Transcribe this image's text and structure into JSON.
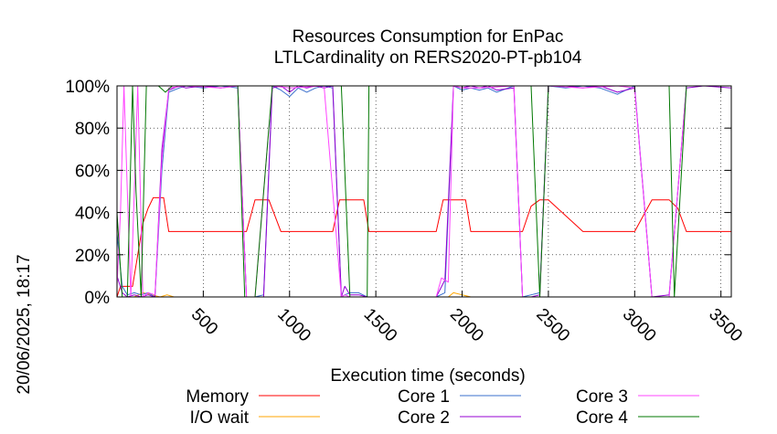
{
  "chart_data": {
    "type": "line",
    "title": "Resources Consumption for EnPac",
    "subtitle": "LTLCardinality on RERS2020-PT-pb104",
    "xlabel": "Execution time (seconds)",
    "ylabel": "",
    "side_label": "20/06/2025, 18:17",
    "xlim": [
      0,
      3560
    ],
    "ylim": [
      0,
      100
    ],
    "x_ticks": [
      500,
      1000,
      1500,
      2000,
      2500,
      3000,
      3500
    ],
    "x_tick_labels": [
      "500",
      "1000",
      "1500",
      "2000",
      "2500",
      "3000",
      "3500"
    ],
    "y_ticks": [
      0,
      20,
      40,
      60,
      80,
      100
    ],
    "y_tick_labels": [
      "0%",
      "20%",
      "40%",
      "60%",
      "80%",
      "100%"
    ],
    "grid": true,
    "legend_position": "bottom",
    "series": [
      {
        "name": "Memory",
        "color": "#ff0000",
        "x": [
          0,
          20,
          40,
          60,
          90,
          120,
          150,
          180,
          210,
          240,
          270,
          300,
          500,
          700,
          750,
          800,
          850,
          880,
          950,
          1100,
          1250,
          1290,
          1350,
          1400,
          1430,
          1460,
          1600,
          1850,
          1890,
          1950,
          2000,
          2020,
          2050,
          2200,
          2350,
          2400,
          2450,
          2480,
          2500,
          2700,
          2900,
          3000,
          3100,
          3200,
          3250,
          3300,
          3560
        ],
        "values": [
          0,
          5,
          5,
          5,
          5,
          20,
          35,
          42,
          47,
          47,
          47,
          31,
          31,
          31,
          31,
          46,
          46,
          46,
          31,
          31,
          31,
          46,
          46,
          46,
          46,
          31,
          31,
          31,
          46,
          46,
          46,
          46,
          31,
          31,
          31,
          43,
          46,
          46,
          46,
          31,
          31,
          31,
          46,
          46,
          42,
          31,
          31
        ]
      },
      {
        "name": "I/O wait",
        "color": "#ffa500",
        "x": [
          0,
          100,
          150,
          200,
          250,
          290,
          330,
          1800,
          1920,
          1950,
          2000,
          2050,
          3560
        ],
        "values": [
          0,
          0,
          2,
          1,
          0,
          1,
          0,
          0,
          0,
          2,
          1,
          0,
          0
        ]
      },
      {
        "name": "Core 1",
        "color": "#3a6fcc",
        "x": [
          0,
          30,
          60,
          100,
          140,
          180,
          220,
          260,
          300,
          360,
          400,
          500,
          600,
          700,
          750,
          800,
          850,
          900,
          950,
          1000,
          1050,
          1100,
          1150,
          1200,
          1250,
          1300,
          1320,
          1350,
          1400,
          1450,
          1500,
          1600,
          1800,
          1850,
          1900,
          1950,
          2000,
          2050,
          2100,
          2150,
          2200,
          2300,
          2350,
          2400,
          2450,
          2500,
          2600,
          2700,
          2800,
          2900,
          3000,
          3100,
          3200,
          3300,
          3400,
          3560
        ],
        "values": [
          30,
          5,
          1,
          2,
          1,
          2,
          0,
          60,
          97,
          99,
          100,
          99,
          100,
          99,
          0,
          0,
          1,
          100,
          98,
          95,
          99,
          97,
          99,
          100,
          99,
          0,
          1,
          2,
          2,
          0,
          0,
          0,
          0,
          0,
          2,
          100,
          98,
          99,
          98,
          99,
          97,
          100,
          0,
          1,
          2,
          100,
          99,
          100,
          99,
          96,
          100,
          0,
          0,
          100,
          100,
          100
        ]
      },
      {
        "name": "Core 2",
        "color": "#9400d3",
        "x": [
          0,
          30,
          60,
          100,
          140,
          180,
          220,
          260,
          300,
          360,
          400,
          500,
          600,
          700,
          750,
          800,
          850,
          900,
          950,
          1000,
          1050,
          1100,
          1150,
          1200,
          1250,
          1300,
          1320,
          1350,
          1400,
          1450,
          1500,
          1600,
          1800,
          1850,
          1900,
          1950,
          2000,
          2050,
          2100,
          2150,
          2200,
          2300,
          2350,
          2400,
          2450,
          2500,
          2600,
          2700,
          2800,
          2900,
          3000,
          3100,
          3200,
          3300,
          3400,
          3560
        ],
        "values": [
          10,
          2,
          0,
          1,
          0,
          1,
          0,
          70,
          98,
          100,
          99,
          100,
          99,
          100,
          0,
          0,
          0,
          99,
          100,
          97,
          100,
          99,
          100,
          99,
          100,
          0,
          5,
          1,
          1,
          0,
          0,
          0,
          0,
          0,
          8,
          100,
          99,
          100,
          99,
          100,
          98,
          99,
          0,
          0,
          1,
          100,
          100,
          99,
          100,
          97,
          99,
          0,
          1,
          99,
          100,
          99
        ]
      },
      {
        "name": "Core 3",
        "color": "#ff44ff",
        "x": [
          0,
          20,
          40,
          60,
          80,
          100,
          120,
          150,
          180,
          220,
          260,
          300,
          400,
          600,
          700,
          750,
          800,
          900,
          1000,
          1200,
          1300,
          1320,
          1350,
          1400,
          1600,
          1800,
          1850,
          1880,
          1920,
          1950,
          2000,
          2100,
          2300,
          2350,
          2400,
          2450,
          2500,
          2700,
          2900,
          3000,
          3100,
          3200,
          3300,
          3560
        ],
        "values": [
          5,
          40,
          100,
          50,
          0,
          50,
          100,
          0,
          2,
          1,
          65,
          99,
          100,
          99,
          100,
          0,
          0,
          100,
          99,
          100,
          0,
          1,
          0,
          0,
          0,
          0,
          0,
          9,
          7,
          100,
          99,
          99,
          100,
          0,
          0,
          0,
          100,
          99,
          100,
          99,
          0,
          0,
          100,
          100
        ]
      },
      {
        "name": "Core 4",
        "color": "#007700",
        "x": [
          0,
          30,
          60,
          90,
          110,
          140,
          170,
          200,
          240,
          280,
          320,
          360,
          400,
          600,
          700,
          740,
          800,
          900,
          1000,
          1200,
          1250,
          1300,
          1350,
          1400,
          1450,
          1460,
          1600,
          1800,
          1900,
          2000,
          2100,
          2300,
          2400,
          2450,
          2500,
          2700,
          2900,
          3000,
          3100,
          3150,
          3200,
          3230,
          3300,
          3560
        ],
        "values": [
          40,
          0,
          0,
          100,
          50,
          0,
          100,
          100,
          100,
          97,
          100,
          100,
          100,
          100,
          100,
          0,
          0,
          100,
          100,
          100,
          100,
          100,
          0,
          0,
          0,
          100,
          100,
          100,
          100,
          100,
          100,
          100,
          100,
          0,
          100,
          100,
          100,
          100,
          100,
          100,
          100,
          0,
          100,
          100
        ]
      }
    ]
  }
}
